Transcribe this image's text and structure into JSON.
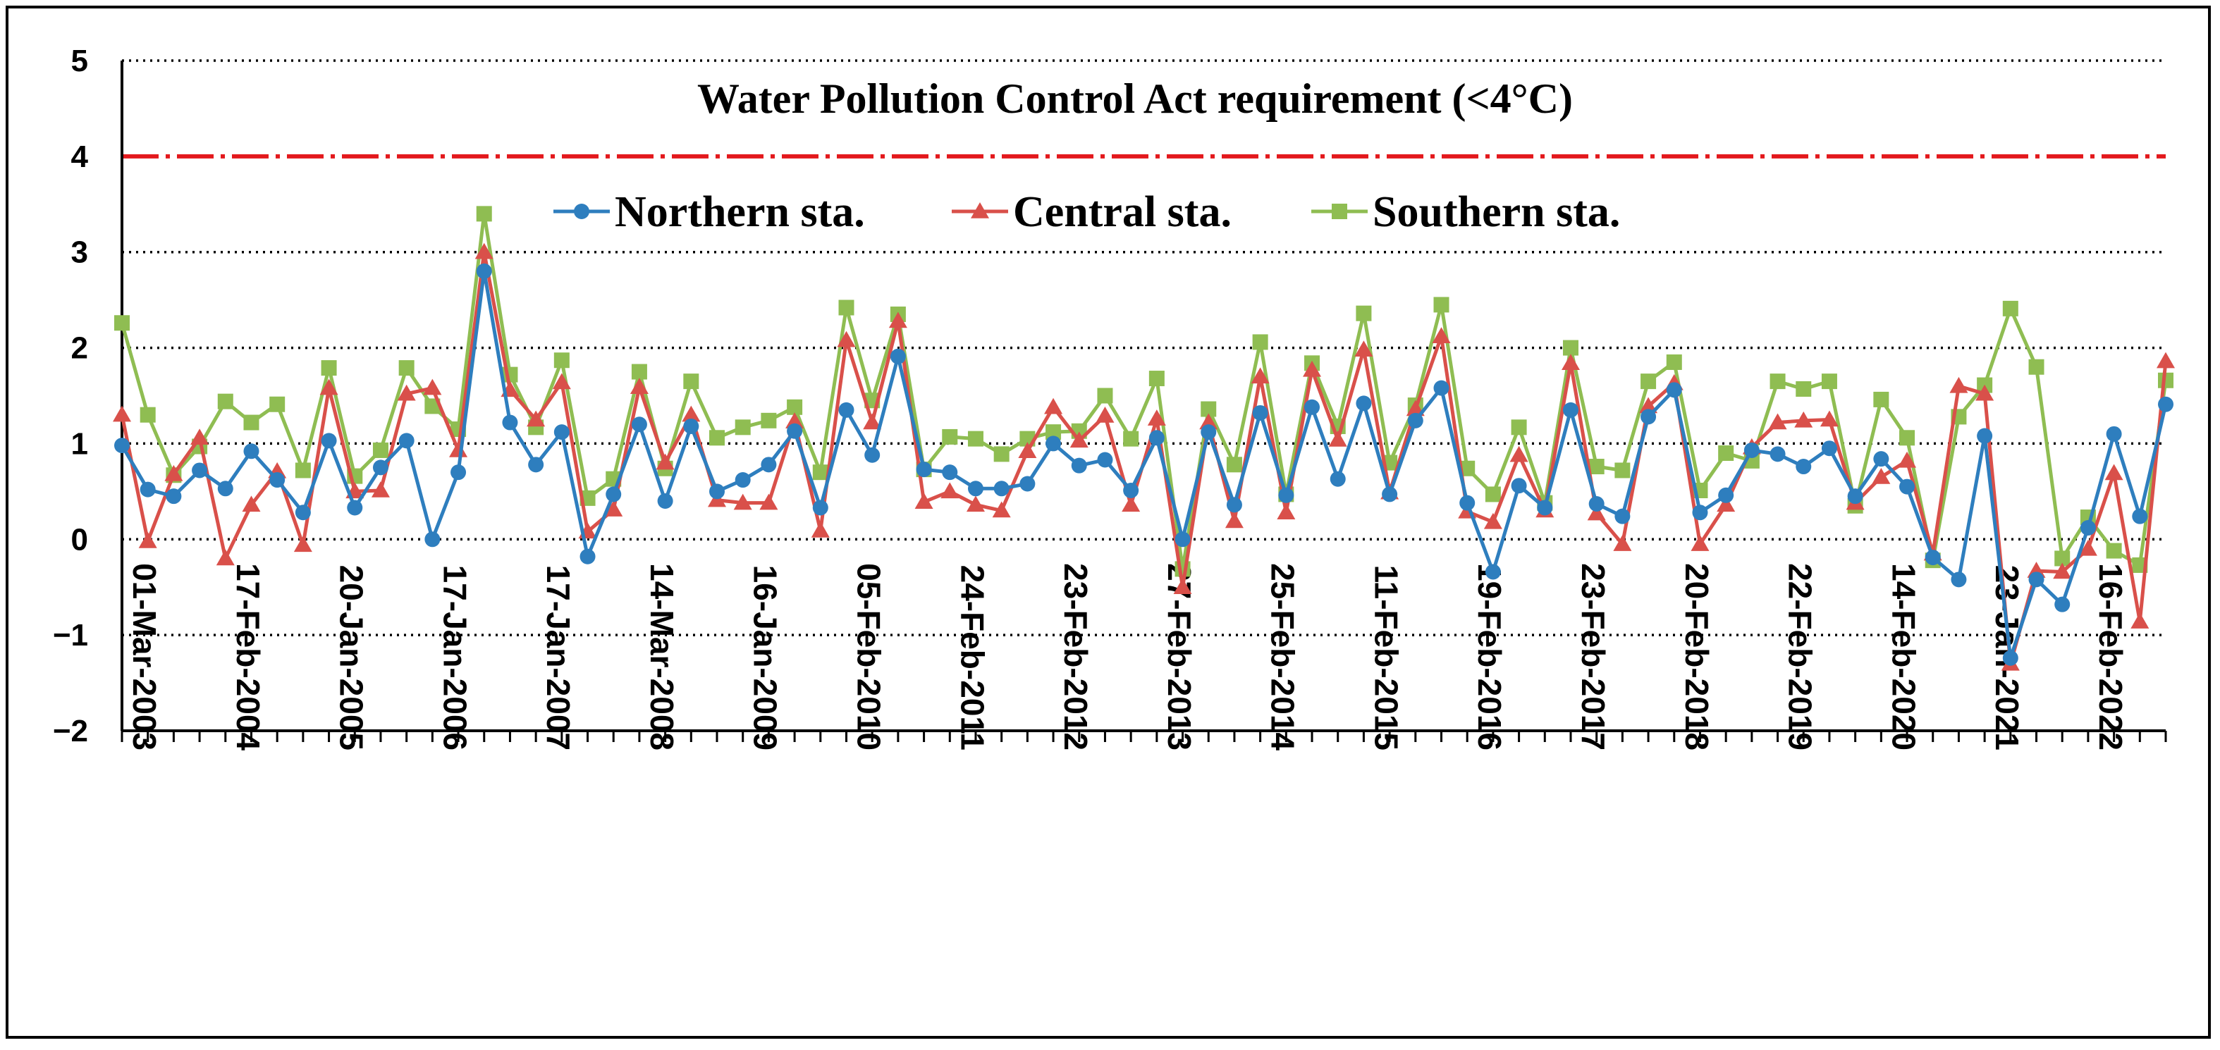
{
  "chart_data": {
    "type": "line",
    "title": "Water Pollution Control Act requirement (<4°C)",
    "xlabel": "",
    "ylabel": "",
    "ylim": [
      -2,
      5
    ],
    "yticks": [
      -2,
      -1,
      0,
      1,
      2,
      3,
      4,
      5
    ],
    "ytick_labels": [
      "−2",
      "−1",
      "0",
      "1",
      "2",
      "3",
      "4",
      "5"
    ],
    "grid": "horizontal dotted",
    "threshold": {
      "value": 4,
      "color": "#e3191d",
      "label": "Water Pollution Control Act requirement (<4°C)"
    },
    "legend_position": "top-center",
    "n_points": 80,
    "x_tick_labels": [
      {
        "index": 0,
        "label": "01-Mar-2003"
      },
      {
        "index": 4,
        "label": "17-Feb-2004"
      },
      {
        "index": 8,
        "label": "20-Jan-2005"
      },
      {
        "index": 12,
        "label": "17-Jan-2006"
      },
      {
        "index": 16,
        "label": "17-Jan-2007"
      },
      {
        "index": 20,
        "label": "14-Mar-2008"
      },
      {
        "index": 24,
        "label": "16-Jan-2009"
      },
      {
        "index": 28,
        "label": "05-Feb-2010"
      },
      {
        "index": 32,
        "label": "24-Feb-2011"
      },
      {
        "index": 36,
        "label": "23-Feb-2012"
      },
      {
        "index": 40,
        "label": "27-Feb-2013"
      },
      {
        "index": 44,
        "label": "25-Feb-2014"
      },
      {
        "index": 48,
        "label": "11-Feb-2015"
      },
      {
        "index": 52,
        "label": "19-Feb-2016"
      },
      {
        "index": 56,
        "label": "23-Feb-2017"
      },
      {
        "index": 60,
        "label": "20-Feb-2018"
      },
      {
        "index": 64,
        "label": "22-Feb-2019"
      },
      {
        "index": 68,
        "label": "14-Feb-2020"
      },
      {
        "index": 72,
        "label": "23-Jan-2021"
      },
      {
        "index": 76,
        "label": "16-Feb-2022"
      }
    ],
    "series": [
      {
        "name": "Northern sta.",
        "marker": "circle",
        "color": "#2e7ebe",
        "values": [
          0.98,
          0.52,
          0.45,
          0.72,
          0.53,
          0.92,
          0.62,
          0.28,
          1.03,
          0.33,
          0.75,
          1.03,
          0.0,
          0.7,
          2.8,
          1.22,
          0.78,
          1.12,
          -0.18,
          0.47,
          1.2,
          0.4,
          1.18,
          0.5,
          0.62,
          0.78,
          1.13,
          0.33,
          1.35,
          0.88,
          1.91,
          0.73,
          0.7,
          0.53,
          0.53,
          0.58,
          1.0,
          0.77,
          0.83,
          0.51,
          1.06,
          0.0,
          1.12,
          0.36,
          1.32,
          0.46,
          1.38,
          0.63,
          1.42,
          0.47,
          1.24,
          1.58,
          0.38,
          -0.34,
          0.56,
          0.33,
          1.35,
          0.37,
          0.24,
          1.28,
          1.56,
          0.28,
          0.46,
          0.93,
          0.89,
          0.76,
          0.95,
          0.45,
          0.84,
          0.55,
          -0.19,
          -0.42,
          1.08,
          -1.24,
          -0.42,
          -0.68,
          0.12,
          1.1,
          0.24,
          1.41
        ]
      },
      {
        "name": "Central sta.",
        "marker": "triangle",
        "color": "#d9504a",
        "values": [
          1.3,
          -0.02,
          0.68,
          1.06,
          -0.2,
          0.36,
          0.71,
          -0.06,
          1.58,
          0.5,
          0.51,
          1.52,
          1.58,
          0.93,
          3.0,
          1.56,
          1.25,
          1.64,
          0.08,
          0.31,
          1.59,
          0.8,
          1.3,
          0.41,
          0.38,
          0.38,
          1.23,
          0.09,
          2.08,
          1.22,
          2.28,
          0.39,
          0.5,
          0.36,
          0.3,
          0.92,
          1.38,
          1.03,
          1.29,
          0.36,
          1.26,
          -0.5,
          1.22,
          0.19,
          1.7,
          0.28,
          1.77,
          1.04,
          1.98,
          0.49,
          1.36,
          2.12,
          0.29,
          0.18,
          0.88,
          0.3,
          1.84,
          0.27,
          -0.05,
          1.39,
          1.63,
          -0.05,
          0.36,
          0.96,
          1.22,
          1.24,
          1.25,
          0.38,
          0.65,
          0.82,
          -0.15,
          1.6,
          1.52,
          -1.3,
          -0.33,
          -0.34,
          -0.1,
          0.69,
          -0.86,
          1.86
        ]
      },
      {
        "name": "Southern sta.",
        "marker": "square",
        "color": "#8fbd52",
        "values": [
          2.26,
          1.3,
          0.67,
          0.97,
          1.44,
          1.22,
          1.41,
          0.72,
          1.79,
          0.66,
          0.93,
          1.79,
          1.39,
          1.15,
          3.4,
          1.72,
          1.17,
          1.87,
          0.43,
          0.63,
          1.75,
          0.74,
          1.65,
          1.06,
          1.17,
          1.24,
          1.38,
          0.7,
          2.42,
          1.45,
          2.35,
          0.73,
          1.07,
          1.05,
          0.89,
          1.05,
          1.12,
          1.13,
          1.5,
          1.05,
          1.68,
          -0.31,
          1.36,
          0.78,
          2.06,
          0.47,
          1.84,
          1.18,
          2.36,
          0.8,
          1.4,
          2.45,
          0.74,
          0.47,
          1.17,
          0.38,
          2.0,
          0.76,
          0.72,
          1.65,
          1.85,
          0.51,
          0.9,
          0.82,
          1.65,
          1.57,
          1.65,
          0.35,
          1.46,
          1.06,
          -0.22,
          1.28,
          1.61,
          2.41,
          1.8,
          -0.2,
          0.23,
          -0.12,
          -0.27,
          1.66
        ]
      }
    ]
  }
}
